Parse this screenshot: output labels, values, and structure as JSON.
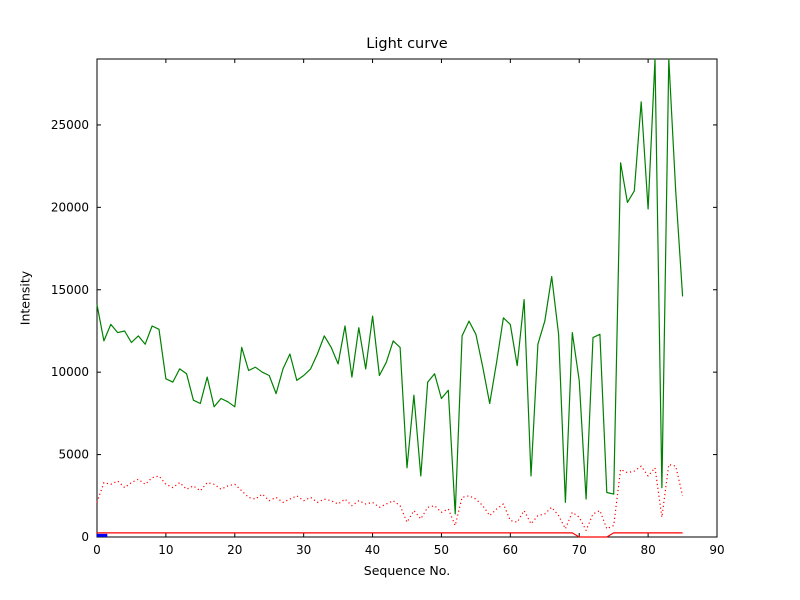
{
  "chart_data": {
    "type": "line",
    "title": "Light curve",
    "xlabel": "Sequence No.",
    "ylabel": "Intensity",
    "xlim": [
      0,
      90
    ],
    "ylim": [
      0,
      29000
    ],
    "xticks": [
      0,
      10,
      20,
      30,
      40,
      50,
      60,
      70,
      80,
      90
    ],
    "yticks": [
      0,
      5000,
      10000,
      15000,
      20000,
      25000
    ],
    "grid": false,
    "legend": "none",
    "background": "#ffffff",
    "series": [
      {
        "name": "main-light-curve",
        "color": "#008000",
        "style": "solid",
        "width": 1.2,
        "x0": 0,
        "dx": 1,
        "values": [
          14100,
          11900,
          12900,
          12400,
          12500,
          11800,
          12200,
          11700,
          12800,
          12600,
          9600,
          9400,
          10200,
          9900,
          8300,
          8100,
          9700,
          7900,
          8400,
          8200,
          7900,
          11500,
          10100,
          10300,
          10000,
          9800,
          8700,
          10200,
          11100,
          9500,
          9800,
          10200,
          11100,
          12200,
          11500,
          10500,
          12800,
          9700,
          12700,
          10200,
          13400,
          9800,
          10600,
          11900,
          11500,
          4200,
          8600,
          3700,
          9400,
          9900,
          8400,
          8900,
          1400,
          12200,
          13100,
          12300,
          10300,
          8100,
          10600,
          13300,
          12900,
          10400,
          14400,
          3700,
          11700,
          13100,
          15800,
          12300,
          2100,
          12400,
          9500,
          2300,
          12100,
          12300,
          2700,
          2600,
          22700,
          20300,
          21000,
          26400,
          19900,
          29600,
          3000,
          29500,
          21000,
          14600
        ]
      },
      {
        "name": "secondary-curve-dotted",
        "color": "#ff0000",
        "style": "dotted",
        "width": 1.2,
        "x0": 0,
        "dx": 1,
        "values": [
          2100,
          3300,
          3200,
          3400,
          3000,
          3300,
          3500,
          3200,
          3600,
          3700,
          3200,
          3000,
          3300,
          2900,
          3100,
          2800,
          3300,
          3200,
          2900,
          3100,
          3200,
          2800,
          2400,
          2300,
          2600,
          2200,
          2400,
          2100,
          2300,
          2500,
          2200,
          2400,
          2100,
          2300,
          2200,
          2000,
          2300,
          1900,
          2200,
          2000,
          2100,
          1800,
          2000,
          2200,
          1900,
          900,
          1600,
          1100,
          1800,
          1900,
          1500,
          1700,
          700,
          2400,
          2500,
          2300,
          1900,
          1300,
          1700,
          2000,
          1000,
          900,
          1600,
          800,
          1300,
          1400,
          1800,
          1300,
          500,
          1500,
          1200,
          400,
          1400,
          1600,
          500,
          700,
          4100,
          3900,
          4000,
          4300,
          3700,
          4200,
          1200,
          4400,
          4300,
          2500
        ]
      },
      {
        "name": "baseline-red",
        "color": "#ff0000",
        "style": "solid",
        "width": 1.2,
        "x0": 0,
        "dx": 1,
        "values": [
          250,
          250,
          250,
          250,
          250,
          250,
          250,
          250,
          250,
          250,
          250,
          250,
          250,
          250,
          250,
          250,
          250,
          250,
          250,
          250,
          250,
          250,
          250,
          250,
          250,
          250,
          250,
          250,
          250,
          250,
          250,
          250,
          250,
          250,
          250,
          250,
          250,
          250,
          250,
          250,
          250,
          250,
          250,
          250,
          250,
          250,
          250,
          250,
          250,
          250,
          250,
          250,
          250,
          250,
          250,
          250,
          250,
          250,
          250,
          250,
          250,
          250,
          250,
          250,
          250,
          250,
          250,
          250,
          250,
          250,
          0,
          0,
          0,
          0,
          0,
          250,
          250,
          250,
          250,
          250,
          250,
          250,
          250,
          250,
          250,
          250
        ]
      },
      {
        "name": "marker-blue",
        "color": "#0000ff",
        "style": "solid",
        "width": 3,
        "x": [
          0,
          1.5
        ],
        "values": [
          100,
          100
        ]
      }
    ]
  }
}
